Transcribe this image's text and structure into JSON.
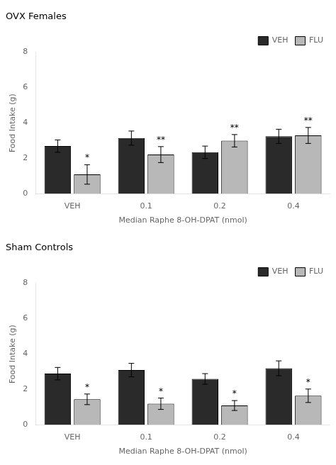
{
  "chart_data": [
    {
      "type": "bar",
      "title": "OVX Females",
      "categories": [
        "VEH",
        "0.1",
        "0.2",
        "0.4"
      ],
      "series": [
        {
          "name": "VEH",
          "color": "#2a2a2a",
          "values": [
            2.7,
            3.15,
            2.35,
            3.25
          ],
          "errors": [
            0.35,
            0.4,
            0.35,
            0.4
          ]
        },
        {
          "name": "FLU",
          "color": "#b8b8b8",
          "values": [
            1.1,
            2.22,
            3.0,
            3.3
          ],
          "errors": [
            0.55,
            0.45,
            0.35,
            0.45
          ],
          "annotations": [
            "*",
            "**",
            "**",
            "**"
          ]
        }
      ],
      "ylim": [
        0,
        8
      ],
      "yticks": [
        0,
        2,
        4,
        6,
        8
      ],
      "ylabel": "Food Intake (g)",
      "xlabel": "Median Raphe 8-OH-DPAT (nmol)",
      "grid": false,
      "legend": "upper right"
    },
    {
      "type": "bar",
      "title": "Sham Controls",
      "categories": [
        "VEH",
        "0.1",
        "0.2",
        "0.4"
      ],
      "series": [
        {
          "name": "VEH",
          "color": "#2a2a2a",
          "values": [
            2.9,
            3.1,
            2.6,
            3.2
          ],
          "errors": [
            0.35,
            0.38,
            0.3,
            0.42
          ]
        },
        {
          "name": "FLU",
          "color": "#b8b8b8",
          "values": [
            1.45,
            1.2,
            1.1,
            1.65
          ],
          "errors": [
            0.3,
            0.32,
            0.28,
            0.38
          ],
          "annotations": [
            "*",
            "*",
            "*",
            "*"
          ]
        }
      ],
      "ylim": [
        0,
        8
      ],
      "yticks": [
        0,
        2,
        4,
        6,
        8
      ],
      "ylabel": "Food Intake (g)",
      "xlabel": "Median Raphe 8-OH-DPAT (nmol)",
      "grid": false,
      "legend": "upper right"
    }
  ]
}
